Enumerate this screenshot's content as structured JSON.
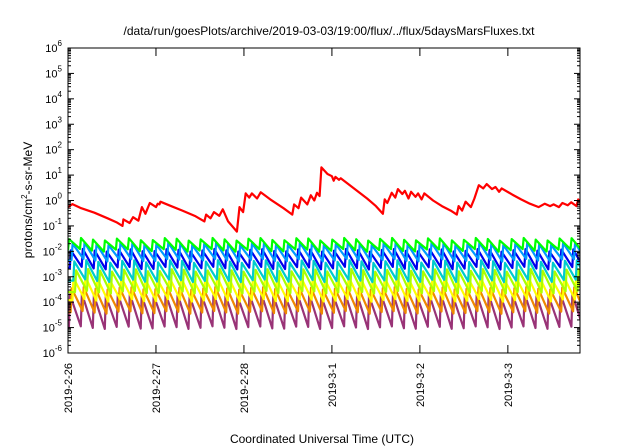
{
  "chart_data": {
    "type": "line",
    "title": "/data/run/goesPlots/archive/2019-03-03/19:00/flux/../flux/5daysMarsFluxes.txt",
    "xlabel": "Coordinated Universal Time (UTC)",
    "ylabel": {
      "pre": "protons/cm",
      "sup": "2",
      "post": "-s-sr-MeV"
    },
    "x_range_days": [
      0,
      5.82
    ],
    "x_ticks": [
      {
        "day": 0,
        "label": "2019-2-26"
      },
      {
        "day": 1,
        "label": "2019-2-27"
      },
      {
        "day": 2,
        "label": "2019-2-28"
      },
      {
        "day": 3,
        "label": "2019-3-1"
      },
      {
        "day": 4,
        "label": "2019-3-2"
      },
      {
        "day": 5,
        "label": "2019-3-3"
      }
    ],
    "y_scale": "log",
    "ylim_exp": [
      -6,
      6
    ],
    "y_ticks": [
      {
        "exp": -6,
        "base": "10",
        "sup": "-6"
      },
      {
        "exp": -5,
        "base": "10",
        "sup": "-5"
      },
      {
        "exp": -4,
        "base": "10",
        "sup": "-4"
      },
      {
        "exp": -3,
        "base": "10",
        "sup": "-3"
      },
      {
        "exp": -2,
        "base": "10",
        "sup": "-2"
      },
      {
        "exp": -1,
        "base": "10",
        "sup": "-1"
      },
      {
        "exp": 0,
        "base": "10",
        "sup": "0"
      },
      {
        "exp": 1,
        "base": "10",
        "sup": "1"
      },
      {
        "exp": 2,
        "base": "10",
        "sup": "2"
      },
      {
        "exp": 3,
        "base": "10",
        "sup": "3"
      },
      {
        "exp": 4,
        "base": "10",
        "sup": "4"
      },
      {
        "exp": 5,
        "base": "10",
        "sup": "5"
      },
      {
        "exp": 6,
        "base": "10",
        "sup": "6"
      }
    ],
    "grid": false,
    "series": [
      {
        "color": "#ff0000",
        "points": [
          [
            0.0,
            0.55
          ],
          [
            0.05,
            0.72
          ],
          [
            0.15,
            0.5
          ],
          [
            0.3,
            0.33
          ],
          [
            0.45,
            0.2
          ],
          [
            0.55,
            0.14
          ],
          [
            0.62,
            0.1
          ],
          [
            0.63,
            0.18
          ],
          [
            0.7,
            0.13
          ],
          [
            0.74,
            0.22
          ],
          [
            0.8,
            0.16
          ],
          [
            0.84,
            0.55
          ],
          [
            0.88,
            0.3
          ],
          [
            0.93,
            0.8
          ],
          [
            1.0,
            0.55
          ],
          [
            1.02,
            0.75
          ],
          [
            1.04,
            0.7
          ],
          [
            1.05,
            0.9
          ],
          [
            1.15,
            0.65
          ],
          [
            1.3,
            0.4
          ],
          [
            1.45,
            0.24
          ],
          [
            1.55,
            0.15
          ],
          [
            1.57,
            0.28
          ],
          [
            1.62,
            0.2
          ],
          [
            1.66,
            0.35
          ],
          [
            1.72,
            0.25
          ],
          [
            1.76,
            0.45
          ],
          [
            1.82,
            0.15
          ],
          [
            1.92,
            0.06
          ],
          [
            1.95,
            0.55
          ],
          [
            1.99,
            0.35
          ],
          [
            2.02,
            1.9
          ],
          [
            2.06,
            1.3
          ],
          [
            2.09,
            1.9
          ],
          [
            2.15,
            1.2
          ],
          [
            2.19,
            2.1
          ],
          [
            2.3,
            1.1
          ],
          [
            2.45,
            0.5
          ],
          [
            2.55,
            0.28
          ],
          [
            2.57,
            0.7
          ],
          [
            2.62,
            0.5
          ],
          [
            2.65,
            1.3
          ],
          [
            2.72,
            0.7
          ],
          [
            2.76,
            1.6
          ],
          [
            2.8,
            1.0
          ],
          [
            2.83,
            2.0
          ],
          [
            2.86,
            1.5
          ],
          [
            2.88,
            20.0
          ],
          [
            2.95,
            11.0
          ],
          [
            3.0,
            9.0
          ],
          [
            3.02,
            6.0
          ],
          [
            3.04,
            8.5
          ],
          [
            3.08,
            6.5
          ],
          [
            3.1,
            7.5
          ],
          [
            3.25,
            3.0
          ],
          [
            3.4,
            1.2
          ],
          [
            3.5,
            0.6
          ],
          [
            3.58,
            0.3
          ],
          [
            3.6,
            1.1
          ],
          [
            3.63,
            0.8
          ],
          [
            3.68,
            2.0
          ],
          [
            3.72,
            1.3
          ],
          [
            3.75,
            2.8
          ],
          [
            3.8,
            1.8
          ],
          [
            3.83,
            2.4
          ],
          [
            3.87,
            1.2
          ],
          [
            3.9,
            2.2
          ],
          [
            3.95,
            1.4
          ],
          [
            3.98,
            1.9
          ],
          [
            4.02,
            1.1
          ],
          [
            4.05,
            1.9
          ],
          [
            4.15,
            1.0
          ],
          [
            4.25,
            0.6
          ],
          [
            4.35,
            0.4
          ],
          [
            4.42,
            0.28
          ],
          [
            4.44,
            0.6
          ],
          [
            4.48,
            0.4
          ],
          [
            4.52,
            0.9
          ],
          [
            4.58,
            0.55
          ],
          [
            4.62,
            1.2
          ],
          [
            4.67,
            4.0
          ],
          [
            4.72,
            3.0
          ],
          [
            4.76,
            4.4
          ],
          [
            4.82,
            2.8
          ],
          [
            4.86,
            3.4
          ],
          [
            4.9,
            2.2
          ],
          [
            4.93,
            3.0
          ],
          [
            5.05,
            1.7
          ],
          [
            5.15,
            1.1
          ],
          [
            5.25,
            0.75
          ],
          [
            5.35,
            0.55
          ],
          [
            5.42,
            0.75
          ],
          [
            5.48,
            0.6
          ],
          [
            5.52,
            0.7
          ],
          [
            5.58,
            0.55
          ],
          [
            5.62,
            0.8
          ],
          [
            5.68,
            0.65
          ],
          [
            5.72,
            0.85
          ],
          [
            5.78,
            0.6
          ],
          [
            5.8,
            1.1
          ],
          [
            5.82,
            0.9
          ]
        ]
      },
      {
        "color": "#00ff00",
        "pattern": {
          "start_day": 0.0,
          "period_days": 0.136,
          "peak": 0.03,
          "trough": 0.011
        }
      },
      {
        "color": "#0099ff",
        "pattern": {
          "start_day": 0.04,
          "period_days": 0.136,
          "peak": 0.02,
          "trough": 0.0045
        }
      },
      {
        "color": "#0000ee",
        "pattern": {
          "start_day": 0.02,
          "period_days": 0.136,
          "peak": 0.011,
          "trough": 0.0022
        }
      },
      {
        "color": "#00cccc",
        "pattern": {
          "start_day": 0.06,
          "period_days": 0.136,
          "peak": 0.004,
          "trough": 0.0007
        }
      },
      {
        "color": "#aaff00",
        "pattern": {
          "start_day": 0.08,
          "period_days": 0.136,
          "peak": 0.0018,
          "trough": 0.00025
        }
      },
      {
        "color": "#ffff00",
        "pattern": {
          "start_day": 0.05,
          "period_days": 0.136,
          "peak": 0.0009,
          "trough": 0.00012
        }
      },
      {
        "color": "#ee8800",
        "pattern": {
          "start_day": 0.03,
          "period_days": 0.136,
          "peak": 0.00035,
          "trough": 4e-05
        }
      },
      {
        "color": "#993377",
        "pattern": {
          "start_day": 0.01,
          "period_days": 0.136,
          "peak": 0.0002,
          "trough": 1e-05
        }
      }
    ]
  }
}
